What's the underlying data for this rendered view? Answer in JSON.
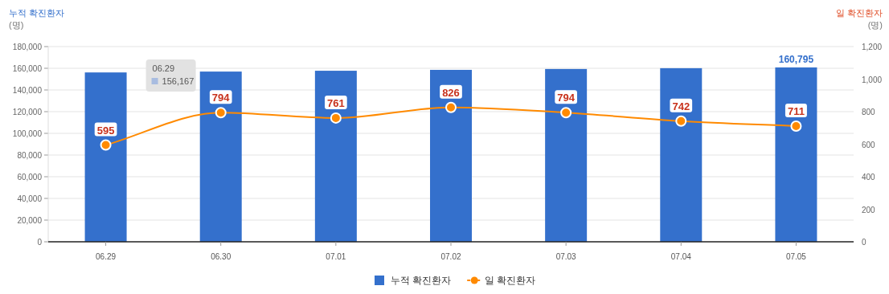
{
  "chart_data": {
    "type": "bar",
    "categories": [
      "06.29",
      "06.30",
      "07.01",
      "07.02",
      "07.03",
      "07.04",
      "07.05"
    ],
    "ylabel": "누적 확진환자\n(명)",
    "y2label": "일 확진환자\n(명)",
    "ylim": [
      0,
      180000
    ],
    "yticks": [
      0,
      {
        "value": 20000,
        "label": "20,000"
      },
      {
        "value": 40000,
        "label": "40,000"
      },
      {
        "value": 60000,
        "label": "60,000"
      },
      {
        "value": 80000,
        "label": "80,000"
      },
      {
        "value": 100000,
        "label": "100,000"
      },
      {
        "value": 120000,
        "label": "120,000"
      },
      {
        "value": 140000,
        "label": "140,000"
      },
      {
        "value": 160000,
        "label": "160,000"
      },
      {
        "value": 180000,
        "label": "180,000"
      }
    ],
    "y2lim": [
      0,
      1200
    ],
    "y2ticks": [
      0,
      200,
      400,
      600,
      800,
      {
        "value": 1000,
        "label": "1,000"
      },
      {
        "value": 1200,
        "label": "1,200"
      }
    ],
    "series": [
      {
        "name": "누적 확진환자",
        "color": "#3470cc",
        "values": [
          156167,
          156961,
          157722,
          158548,
          159342,
          160084,
          160795
        ],
        "value_labels": [
          null,
          null,
          null,
          null,
          null,
          null,
          "160,795"
        ]
      },
      {
        "name": "일 확진환자",
        "type": "line",
        "axis": "y2",
        "color": "#ff8a00",
        "marker": "circle",
        "values": [
          595,
          794,
          761,
          826,
          794,
          742,
          711
        ],
        "value_labels": [
          "595",
          "794",
          "761",
          "826",
          "794",
          "742",
          "711"
        ]
      }
    ],
    "annotations": [
      "06.29\n156,167"
    ],
    "grid": "y",
    "legend": "bottom"
  }
}
